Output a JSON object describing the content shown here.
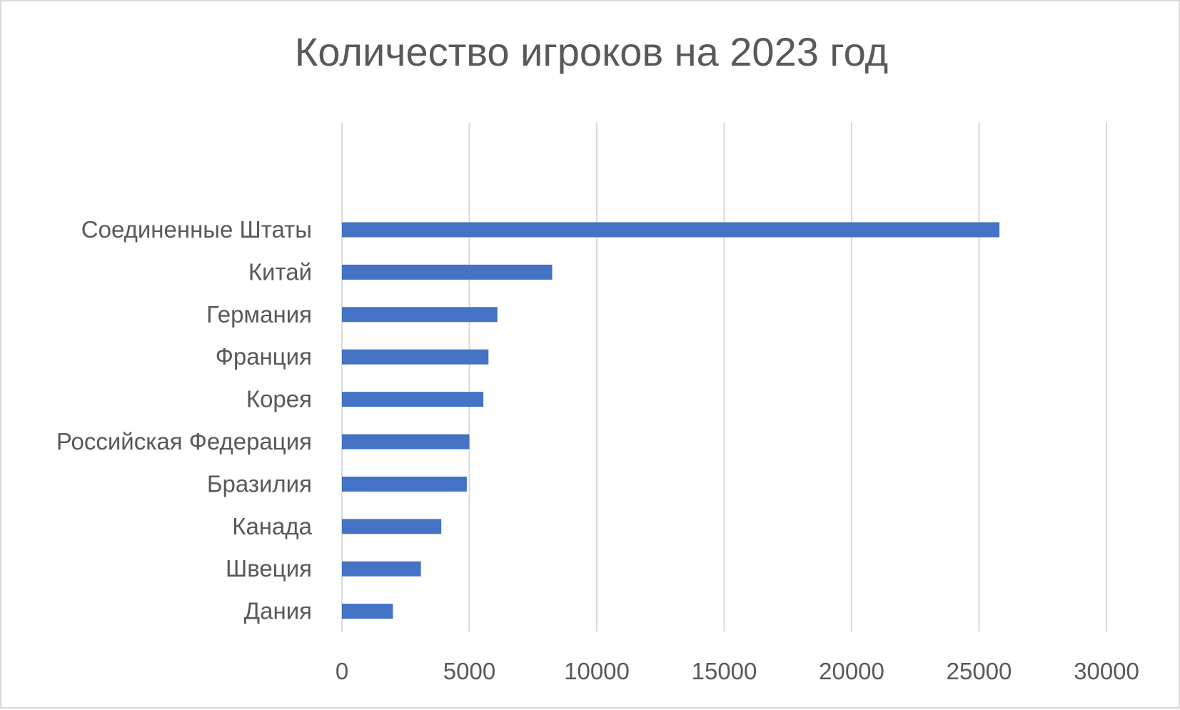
{
  "chart_data": {
    "type": "bar",
    "orientation": "horizontal",
    "title": "Количество игроков на 2023 год",
    "categories": [
      "Соединенные Штаты",
      "Китай",
      "Германия",
      "Франция",
      "Корея",
      "Российская Федерация",
      "Бразилия",
      "Канада",
      "Швеция",
      "Дания"
    ],
    "values": [
      25800,
      8250,
      6100,
      5750,
      5550,
      5000,
      4900,
      3900,
      3100,
      2000
    ],
    "xlim": [
      0,
      30000
    ],
    "xticks": [
      "0",
      "5000",
      "10000",
      "15000",
      "20000",
      "25000",
      "30000"
    ],
    "xtick_values": [
      0,
      5000,
      10000,
      15000,
      20000,
      25000,
      30000
    ],
    "grid": "vertical",
    "legend": "none",
    "bar_color": "#4472c4",
    "grid_color": "#d9d9d9",
    "text_color": "#595959"
  }
}
